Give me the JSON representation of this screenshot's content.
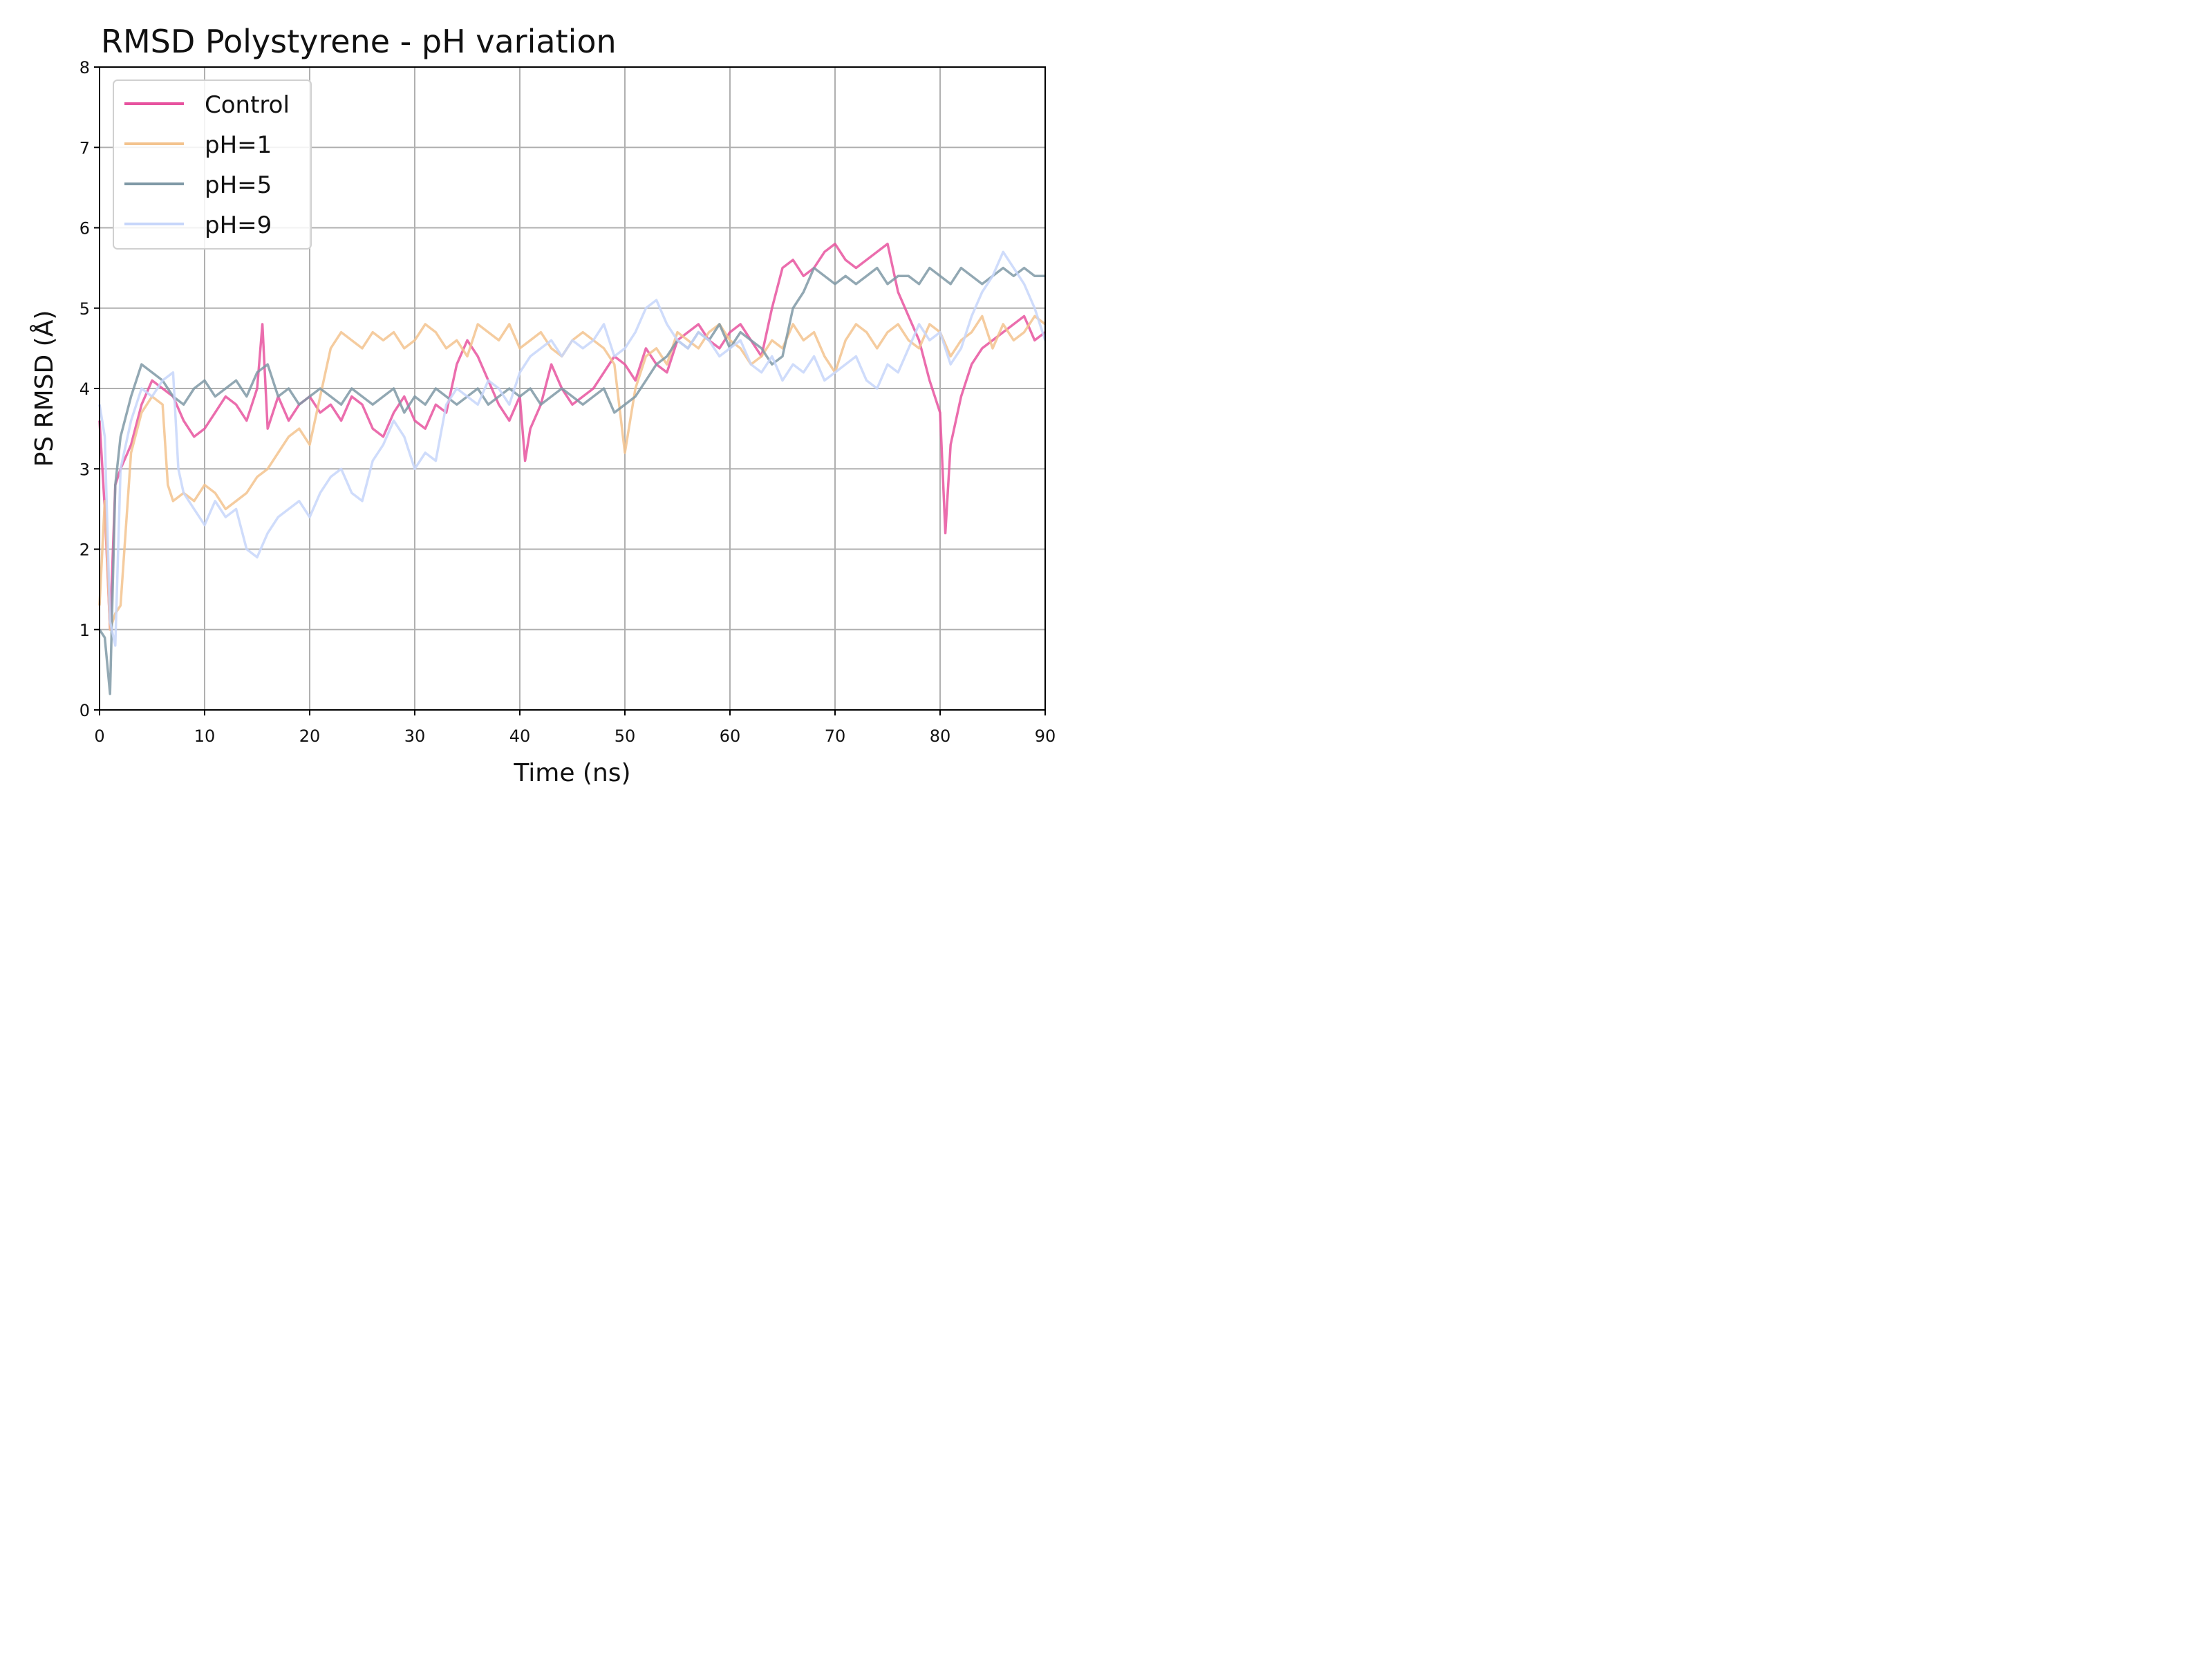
{
  "chart_data": {
    "type": "line",
    "title": "RMSD Polystyrene - pH variation",
    "xlabel": "Time (ns)",
    "ylabel": "PS RMSD (Å)",
    "xlim": [
      0,
      90
    ],
    "ylim": [
      0,
      8
    ],
    "xticks": [
      0,
      10,
      20,
      30,
      40,
      50,
      60,
      70,
      80,
      90
    ],
    "yticks": [
      0,
      1,
      2,
      3,
      4,
      5,
      6,
      7,
      8
    ],
    "xtick_labels": [
      "0",
      "10",
      "20",
      "30",
      "40",
      "50",
      "60",
      "70",
      "80",
      "90"
    ],
    "ytick_labels": [
      "0",
      "1",
      "2",
      "3",
      "4",
      "5",
      "6",
      "7",
      "8"
    ],
    "grid": true,
    "legend_position": "top-left",
    "series": [
      {
        "name": "Control",
        "color": "#e7539f",
        "x": [
          0,
          0.5,
          1,
          1.5,
          2,
          3,
          4,
          5,
          6,
          7,
          8,
          9,
          10,
          11,
          12,
          13,
          14,
          15,
          15.5,
          16,
          17,
          18,
          19,
          20,
          21,
          22,
          23,
          24,
          25,
          26,
          27,
          28,
          29,
          30,
          31,
          32,
          33,
          34,
          35,
          36,
          37,
          38,
          39,
          40,
          40.5,
          41,
          42,
          43,
          44,
          45,
          46,
          47,
          48,
          49,
          50,
          51,
          52,
          53,
          54,
          55,
          56,
          57,
          58,
          59,
          60,
          61,
          62,
          63,
          64,
          65,
          66,
          67,
          68,
          69,
          70,
          71,
          72,
          73,
          74,
          75,
          76,
          77,
          78,
          79,
          80,
          80.5,
          81,
          82,
          83,
          84,
          85,
          86,
          87,
          88,
          89,
          90
        ],
        "y": [
          3.6,
          2.5,
          1.0,
          2.8,
          3.0,
          3.3,
          3.8,
          4.1,
          4.0,
          3.9,
          3.6,
          3.4,
          3.5,
          3.7,
          3.9,
          3.8,
          3.6,
          4.0,
          4.8,
          3.5,
          3.9,
          3.6,
          3.8,
          3.9,
          3.7,
          3.8,
          3.6,
          3.9,
          3.8,
          3.5,
          3.4,
          3.7,
          3.9,
          3.6,
          3.5,
          3.8,
          3.7,
          4.3,
          4.6,
          4.4,
          4.1,
          3.8,
          3.6,
          3.9,
          3.1,
          3.5,
          3.8,
          4.3,
          4.0,
          3.8,
          3.9,
          4.0,
          4.2,
          4.4,
          4.3,
          4.1,
          4.5,
          4.3,
          4.2,
          4.6,
          4.7,
          4.8,
          4.6,
          4.5,
          4.7,
          4.8,
          4.6,
          4.4,
          5.0,
          5.5,
          5.6,
          5.4,
          5.5,
          5.7,
          5.8,
          5.6,
          5.5,
          5.6,
          5.7,
          5.8,
          5.2,
          4.9,
          4.6,
          4.1,
          3.7,
          2.2,
          3.3,
          3.9,
          4.3,
          4.5,
          4.6,
          4.7,
          4.8,
          4.9,
          4.6,
          4.7
        ]
      },
      {
        "name": "pH=1",
        "color": "#f3c38e",
        "x": [
          0,
          0.5,
          1,
          1.5,
          2,
          3,
          4,
          5,
          6,
          6.5,
          7,
          8,
          9,
          10,
          11,
          12,
          13,
          14,
          15,
          16,
          17,
          18,
          19,
          20,
          21,
          22,
          23,
          24,
          25,
          26,
          27,
          28,
          29,
          30,
          31,
          32,
          33,
          34,
          35,
          36,
          37,
          38,
          39,
          40,
          41,
          42,
          43,
          44,
          45,
          46,
          47,
          48,
          49,
          50,
          51,
          52,
          53,
          54,
          55,
          56,
          57,
          58,
          59,
          60,
          61,
          62,
          63,
          64,
          65,
          66,
          67,
          68,
          69,
          70,
          71,
          72,
          73,
          74,
          75,
          76,
          77,
          78,
          79,
          80,
          81,
          82,
          83,
          84,
          85,
          86,
          87,
          88,
          89,
          90
        ],
        "y": [
          1.3,
          2.6,
          1.0,
          1.2,
          1.3,
          3.2,
          3.7,
          3.9,
          3.8,
          2.8,
          2.6,
          2.7,
          2.6,
          2.8,
          2.7,
          2.5,
          2.6,
          2.7,
          2.9,
          3.0,
          3.2,
          3.4,
          3.5,
          3.3,
          3.9,
          4.5,
          4.7,
          4.6,
          4.5,
          4.7,
          4.6,
          4.7,
          4.5,
          4.6,
          4.8,
          4.7,
          4.5,
          4.6,
          4.4,
          4.8,
          4.7,
          4.6,
          4.8,
          4.5,
          4.6,
          4.7,
          4.5,
          4.4,
          4.6,
          4.7,
          4.6,
          4.5,
          4.3,
          3.2,
          4.0,
          4.4,
          4.5,
          4.3,
          4.7,
          4.6,
          4.5,
          4.7,
          4.8,
          4.6,
          4.5,
          4.3,
          4.4,
          4.6,
          4.5,
          4.8,
          4.6,
          4.7,
          4.4,
          4.2,
          4.6,
          4.8,
          4.7,
          4.5,
          4.7,
          4.8,
          4.6,
          4.5,
          4.8,
          4.7,
          4.4,
          4.6,
          4.7,
          4.9,
          4.5,
          4.8,
          4.6,
          4.7,
          4.9,
          4.8
        ]
      },
      {
        "name": "pH=5",
        "color": "#7f99a6",
        "x": [
          0,
          0.5,
          1,
          1.5,
          2,
          3,
          4,
          5,
          6,
          7,
          8,
          9,
          10,
          11,
          12,
          13,
          14,
          15,
          16,
          17,
          18,
          19,
          20,
          21,
          22,
          23,
          24,
          25,
          26,
          27,
          28,
          29,
          30,
          31,
          32,
          33,
          34,
          35,
          36,
          37,
          38,
          39,
          40,
          41,
          42,
          43,
          44,
          45,
          46,
          47,
          48,
          49,
          50,
          51,
          52,
          53,
          54,
          55,
          56,
          57,
          58,
          59,
          60,
          61,
          62,
          63,
          64,
          65,
          66,
          67,
          68,
          69,
          70,
          71,
          72,
          73,
          74,
          75,
          76,
          77,
          78,
          79,
          80,
          81,
          82,
          83,
          84,
          85,
          86,
          87,
          88,
          89,
          90
        ],
        "y": [
          1.0,
          0.9,
          0.2,
          2.8,
          3.4,
          3.9,
          4.3,
          4.2,
          4.1,
          3.9,
          3.8,
          4.0,
          4.1,
          3.9,
          4.0,
          4.1,
          3.9,
          4.2,
          4.3,
          3.9,
          4.0,
          3.8,
          3.9,
          4.0,
          3.9,
          3.8,
          4.0,
          3.9,
          3.8,
          3.9,
          4.0,
          3.7,
          3.9,
          3.8,
          4.0,
          3.9,
          3.8,
          3.9,
          4.0,
          3.8,
          3.9,
          4.0,
          3.9,
          4.0,
          3.8,
          3.9,
          4.0,
          3.9,
          3.8,
          3.9,
          4.0,
          3.7,
          3.8,
          3.9,
          4.1,
          4.3,
          4.4,
          4.6,
          4.5,
          4.7,
          4.6,
          4.8,
          4.5,
          4.7,
          4.6,
          4.5,
          4.3,
          4.4,
          5.0,
          5.2,
          5.5,
          5.4,
          5.3,
          5.4,
          5.3,
          5.4,
          5.5,
          5.3,
          5.4,
          5.4,
          5.3,
          5.5,
          5.4,
          5.3,
          5.5,
          5.4,
          5.3,
          5.4,
          5.5,
          5.4,
          5.5,
          5.4,
          5.4
        ]
      },
      {
        "name": "pH=9",
        "color": "#c7d6fa",
        "x": [
          0,
          0.5,
          1,
          1.5,
          2,
          3,
          4,
          5,
          6,
          7,
          7.5,
          8,
          9,
          10,
          11,
          12,
          13,
          14,
          15,
          16,
          17,
          18,
          19,
          20,
          21,
          22,
          23,
          24,
          25,
          26,
          27,
          28,
          29,
          30,
          31,
          32,
          33,
          34,
          35,
          36,
          37,
          38,
          39,
          40,
          41,
          42,
          43,
          44,
          45,
          46,
          47,
          48,
          49,
          50,
          51,
          52,
          53,
          54,
          55,
          56,
          57,
          58,
          59,
          60,
          61,
          62,
          63,
          64,
          65,
          66,
          67,
          68,
          69,
          70,
          71,
          72,
          73,
          74,
          75,
          76,
          77,
          78,
          79,
          80,
          81,
          82,
          83,
          84,
          85,
          86,
          87,
          88,
          89,
          90
        ],
        "y": [
          3.8,
          3.4,
          1.1,
          0.8,
          3.0,
          3.6,
          4.0,
          3.9,
          4.1,
          4.2,
          3.0,
          2.7,
          2.5,
          2.3,
          2.6,
          2.4,
          2.5,
          2.0,
          1.9,
          2.2,
          2.4,
          2.5,
          2.6,
          2.4,
          2.7,
          2.9,
          3.0,
          2.7,
          2.6,
          3.1,
          3.3,
          3.6,
          3.4,
          3.0,
          3.2,
          3.1,
          3.8,
          4.0,
          3.9,
          3.8,
          4.1,
          4.0,
          3.8,
          4.2,
          4.4,
          4.5,
          4.6,
          4.4,
          4.6,
          4.5,
          4.6,
          4.8,
          4.4,
          4.5,
          4.7,
          5.0,
          5.1,
          4.8,
          4.6,
          4.5,
          4.7,
          4.6,
          4.4,
          4.5,
          4.6,
          4.3,
          4.2,
          4.4,
          4.1,
          4.3,
          4.2,
          4.4,
          4.1,
          4.2,
          4.3,
          4.4,
          4.1,
          4.0,
          4.3,
          4.2,
          4.5,
          4.8,
          4.6,
          4.7,
          4.3,
          4.5,
          4.9,
          5.2,
          5.4,
          5.7,
          5.5,
          5.3,
          5.0,
          4.6
        ]
      }
    ]
  }
}
